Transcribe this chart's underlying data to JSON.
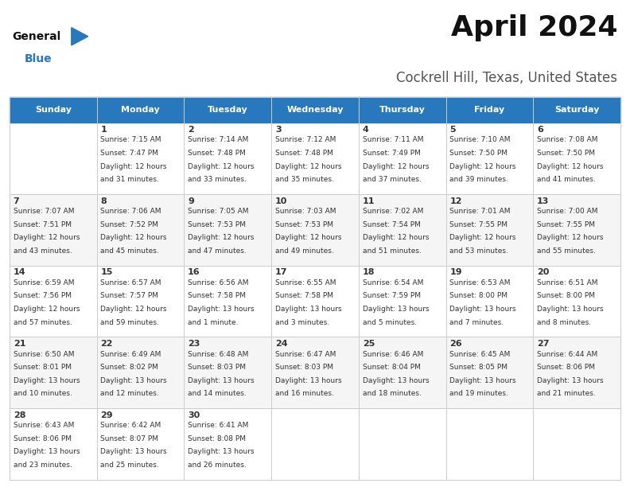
{
  "title": "April 2024",
  "subtitle": "Cockrell Hill, Texas, United States",
  "header_color": "#2878BE",
  "header_text_color": "#FFFFFF",
  "days_of_week": [
    "Sunday",
    "Monday",
    "Tuesday",
    "Wednesday",
    "Thursday",
    "Friday",
    "Saturday"
  ],
  "bg_color": "#FFFFFF",
  "cell_border_color": "#CCCCCC",
  "text_color": "#333333",
  "calendar": [
    [
      {
        "day": "",
        "sunrise": "",
        "sunset": "",
        "daylight": ""
      },
      {
        "day": "1",
        "sunrise": "7:15 AM",
        "sunset": "7:47 PM",
        "daylight": "12 hours and 31 minutes."
      },
      {
        "day": "2",
        "sunrise": "7:14 AM",
        "sunset": "7:48 PM",
        "daylight": "12 hours and 33 minutes."
      },
      {
        "day": "3",
        "sunrise": "7:12 AM",
        "sunset": "7:48 PM",
        "daylight": "12 hours and 35 minutes."
      },
      {
        "day": "4",
        "sunrise": "7:11 AM",
        "sunset": "7:49 PM",
        "daylight": "12 hours and 37 minutes."
      },
      {
        "day": "5",
        "sunrise": "7:10 AM",
        "sunset": "7:50 PM",
        "daylight": "12 hours and 39 minutes."
      },
      {
        "day": "6",
        "sunrise": "7:08 AM",
        "sunset": "7:50 PM",
        "daylight": "12 hours and 41 minutes."
      }
    ],
    [
      {
        "day": "7",
        "sunrise": "7:07 AM",
        "sunset": "7:51 PM",
        "daylight": "12 hours and 43 minutes."
      },
      {
        "day": "8",
        "sunrise": "7:06 AM",
        "sunset": "7:52 PM",
        "daylight": "12 hours and 45 minutes."
      },
      {
        "day": "9",
        "sunrise": "7:05 AM",
        "sunset": "7:53 PM",
        "daylight": "12 hours and 47 minutes."
      },
      {
        "day": "10",
        "sunrise": "7:03 AM",
        "sunset": "7:53 PM",
        "daylight": "12 hours and 49 minutes."
      },
      {
        "day": "11",
        "sunrise": "7:02 AM",
        "sunset": "7:54 PM",
        "daylight": "12 hours and 51 minutes."
      },
      {
        "day": "12",
        "sunrise": "7:01 AM",
        "sunset": "7:55 PM",
        "daylight": "12 hours and 53 minutes."
      },
      {
        "day": "13",
        "sunrise": "7:00 AM",
        "sunset": "7:55 PM",
        "daylight": "12 hours and 55 minutes."
      }
    ],
    [
      {
        "day": "14",
        "sunrise": "6:59 AM",
        "sunset": "7:56 PM",
        "daylight": "12 hours and 57 minutes."
      },
      {
        "day": "15",
        "sunrise": "6:57 AM",
        "sunset": "7:57 PM",
        "daylight": "12 hours and 59 minutes."
      },
      {
        "day": "16",
        "sunrise": "6:56 AM",
        "sunset": "7:58 PM",
        "daylight": "13 hours and 1 minute."
      },
      {
        "day": "17",
        "sunrise": "6:55 AM",
        "sunset": "7:58 PM",
        "daylight": "13 hours and 3 minutes."
      },
      {
        "day": "18",
        "sunrise": "6:54 AM",
        "sunset": "7:59 PM",
        "daylight": "13 hours and 5 minutes."
      },
      {
        "day": "19",
        "sunrise": "6:53 AM",
        "sunset": "8:00 PM",
        "daylight": "13 hours and 7 minutes."
      },
      {
        "day": "20",
        "sunrise": "6:51 AM",
        "sunset": "8:00 PM",
        "daylight": "13 hours and 8 minutes."
      }
    ],
    [
      {
        "day": "21",
        "sunrise": "6:50 AM",
        "sunset": "8:01 PM",
        "daylight": "13 hours and 10 minutes."
      },
      {
        "day": "22",
        "sunrise": "6:49 AM",
        "sunset": "8:02 PM",
        "daylight": "13 hours and 12 minutes."
      },
      {
        "day": "23",
        "sunrise": "6:48 AM",
        "sunset": "8:03 PM",
        "daylight": "13 hours and 14 minutes."
      },
      {
        "day": "24",
        "sunrise": "6:47 AM",
        "sunset": "8:03 PM",
        "daylight": "13 hours and 16 minutes."
      },
      {
        "day": "25",
        "sunrise": "6:46 AM",
        "sunset": "8:04 PM",
        "daylight": "13 hours and 18 minutes."
      },
      {
        "day": "26",
        "sunrise": "6:45 AM",
        "sunset": "8:05 PM",
        "daylight": "13 hours and 19 minutes."
      },
      {
        "day": "27",
        "sunrise": "6:44 AM",
        "sunset": "8:06 PM",
        "daylight": "13 hours and 21 minutes."
      }
    ],
    [
      {
        "day": "28",
        "sunrise": "6:43 AM",
        "sunset": "8:06 PM",
        "daylight": "13 hours and 23 minutes."
      },
      {
        "day": "29",
        "sunrise": "6:42 AM",
        "sunset": "8:07 PM",
        "daylight": "13 hours and 25 minutes."
      },
      {
        "day": "30",
        "sunrise": "6:41 AM",
        "sunset": "8:08 PM",
        "daylight": "13 hours and 26 minutes."
      },
      {
        "day": "",
        "sunrise": "",
        "sunset": "",
        "daylight": ""
      },
      {
        "day": "",
        "sunrise": "",
        "sunset": "",
        "daylight": ""
      },
      {
        "day": "",
        "sunrise": "",
        "sunset": "",
        "daylight": ""
      },
      {
        "day": "",
        "sunrise": "",
        "sunset": "",
        "daylight": ""
      }
    ]
  ],
  "logo_general_color": "#111111",
  "logo_blue_color": "#2878BE",
  "logo_triangle_color": "#2878BE",
  "title_fontsize": 26,
  "subtitle_fontsize": 12,
  "header_fontsize": 8,
  "day_num_fontsize": 8,
  "cell_text_fontsize": 6.5
}
